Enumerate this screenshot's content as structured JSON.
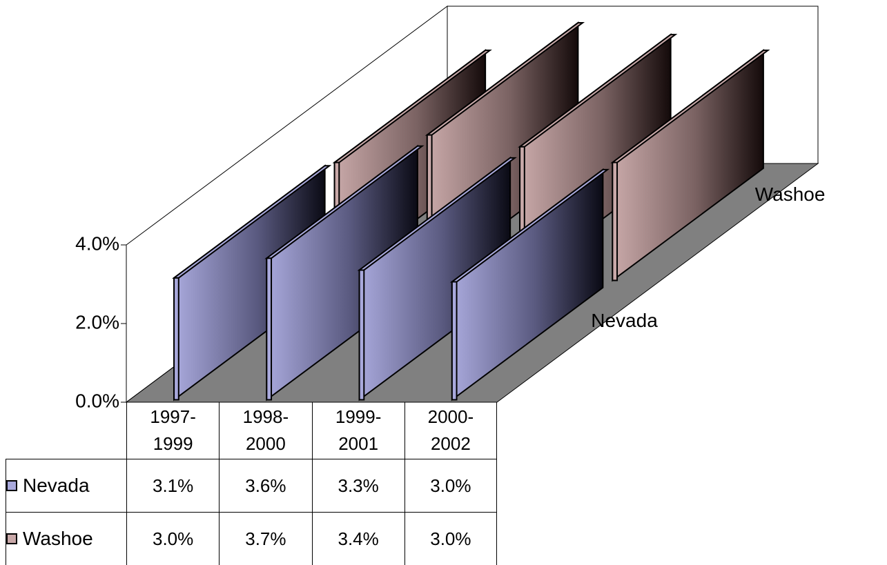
{
  "chart_data": {
    "type": "bar3d",
    "categories": [
      "1997-1999",
      "1998-2000",
      "1999-2001",
      "2000-2002"
    ],
    "series": [
      {
        "name": "Nevada",
        "color": "#a9a9dc",
        "values": [
          3.1,
          3.6,
          3.3,
          3.0
        ],
        "value_labels": [
          "3.1%",
          "3.6%",
          "3.3%",
          "3.0%"
        ]
      },
      {
        "name": "Washoe",
        "color": "#c9a9a9",
        "values": [
          3.0,
          3.7,
          3.4,
          3.0
        ],
        "value_labels": [
          "3.0%",
          "3.7%",
          "3.4%",
          "3.0%"
        ]
      }
    ],
    "ylim": [
      0,
      4
    ],
    "yticks": [
      {
        "value": 0,
        "label": "0.0%"
      },
      {
        "value": 2,
        "label": "2.0%"
      },
      {
        "value": 4,
        "label": "4.0%"
      }
    ],
    "data_table": true
  }
}
